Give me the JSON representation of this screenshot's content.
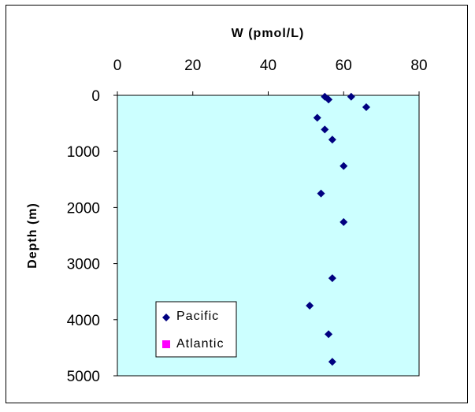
{
  "chart_data": {
    "type": "scatter",
    "title": "",
    "xlabel": "W (pmol/L)",
    "ylabel": "Depth (m)",
    "xlim": [
      0,
      80
    ],
    "ylim": [
      0,
      5000
    ],
    "y_inverted": true,
    "x_ticks": [
      "0",
      "20",
      "40",
      "60",
      "80"
    ],
    "y_ticks": [
      "0",
      "1000",
      "2000",
      "3000",
      "4000",
      "5000"
    ],
    "x_axis_position": "top",
    "plot_background": "#ccffff",
    "grid": false,
    "legend_position": "bottom-left",
    "series": [
      {
        "name": "Pacific",
        "marker": "diamond",
        "color": "#000080",
        "points": [
          {
            "x": 55,
            "y": 25
          },
          {
            "x": 56,
            "y": 75
          },
          {
            "x": 62,
            "y": 25
          },
          {
            "x": 66,
            "y": 210
          },
          {
            "x": 53,
            "y": 400
          },
          {
            "x": 55,
            "y": 610
          },
          {
            "x": 57,
            "y": 790
          },
          {
            "x": 60,
            "y": 1260
          },
          {
            "x": 54,
            "y": 1750
          },
          {
            "x": 60,
            "y": 2260
          },
          {
            "x": 57,
            "y": 3260
          },
          {
            "x": 51,
            "y": 3750
          },
          {
            "x": 56,
            "y": 4260
          },
          {
            "x": 57,
            "y": 4750
          }
        ]
      },
      {
        "name": "Atlantic",
        "marker": "square",
        "color": "#ff00ff",
        "points": []
      }
    ]
  }
}
